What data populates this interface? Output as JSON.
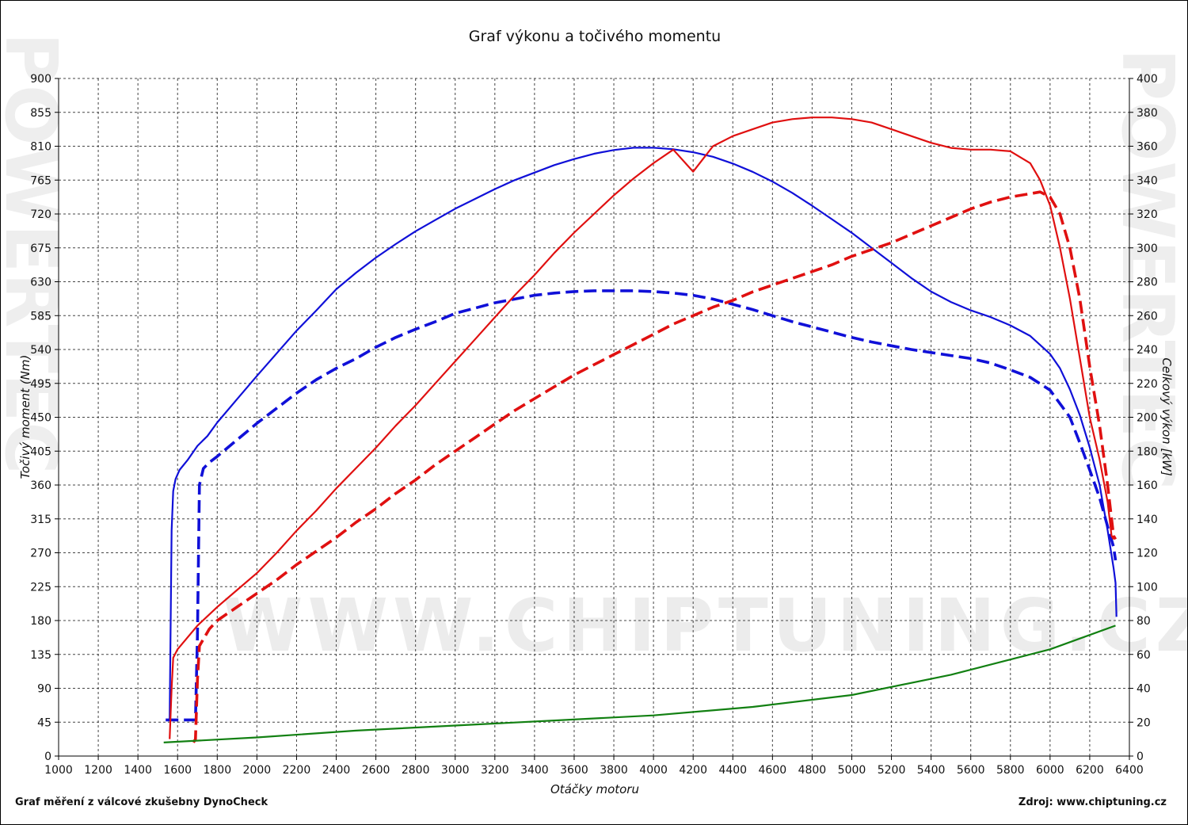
{
  "title": "Graf výkonu a točivého momentu",
  "footer_left": "Graf měření z válcové zkušebny DynoCheck",
  "footer_right": "Zdroj: www.chiptuning.cz",
  "watermark_url": "WWW.CHIPTUNING.CZ",
  "watermark_side": "POWERTEC",
  "chart_data": {
    "type": "line",
    "title": "Graf výkonu a točivého momentu",
    "xlabel": "Otáčky motoru",
    "ylabel_left": "Točivý moment (Nm)",
    "ylabel_right": "Celkový výkon [kW]",
    "xlim": [
      1000,
      6400
    ],
    "ylim_left": [
      0,
      900
    ],
    "ylim_right": [
      0,
      400
    ],
    "x_ticks": [
      1000,
      1200,
      1400,
      1600,
      1800,
      2000,
      2200,
      2400,
      2600,
      2800,
      3000,
      3200,
      3400,
      3600,
      3800,
      4000,
      4200,
      4400,
      4600,
      4800,
      5000,
      5200,
      5400,
      5600,
      5800,
      6000,
      6200,
      6400
    ],
    "y_ticks_left": [
      0,
      45,
      90,
      135,
      180,
      225,
      270,
      315,
      360,
      405,
      450,
      495,
      540,
      585,
      630,
      675,
      720,
      765,
      810,
      855,
      900
    ],
    "y_ticks_right": [
      0,
      20,
      40,
      60,
      80,
      100,
      120,
      140,
      160,
      180,
      200,
      220,
      240,
      260,
      280,
      300,
      320,
      340,
      360,
      380,
      400
    ],
    "grid": true,
    "colors": {
      "torque": "#1010d8",
      "power": "#e01010",
      "loss": "#128012"
    },
    "series": [
      {
        "key": "torque_tuned",
        "axis": "left",
        "color": "#1010d8",
        "dash": false,
        "points": [
          [
            1550,
            47
          ],
          [
            1560,
            48
          ],
          [
            1570,
            300
          ],
          [
            1578,
            352
          ],
          [
            1590,
            368
          ],
          [
            1610,
            380
          ],
          [
            1650,
            393
          ],
          [
            1700,
            412
          ],
          [
            1750,
            425
          ],
          [
            1800,
            443
          ],
          [
            1900,
            474
          ],
          [
            2000,
            505
          ],
          [
            2100,
            535
          ],
          [
            2200,
            565
          ],
          [
            2300,
            592
          ],
          [
            2400,
            620
          ],
          [
            2500,
            642
          ],
          [
            2600,
            662
          ],
          [
            2700,
            680
          ],
          [
            2800,
            697
          ],
          [
            2900,
            712
          ],
          [
            3000,
            727
          ],
          [
            3100,
            740
          ],
          [
            3200,
            753
          ],
          [
            3300,
            765
          ],
          [
            3400,
            775
          ],
          [
            3500,
            785
          ],
          [
            3600,
            793
          ],
          [
            3700,
            800
          ],
          [
            3800,
            805
          ],
          [
            3900,
            808
          ],
          [
            4000,
            808
          ],
          [
            4100,
            806
          ],
          [
            4200,
            802
          ],
          [
            4300,
            796
          ],
          [
            4400,
            787
          ],
          [
            4500,
            776
          ],
          [
            4600,
            763
          ],
          [
            4700,
            748
          ],
          [
            4800,
            731
          ],
          [
            4900,
            713
          ],
          [
            5000,
            695
          ],
          [
            5100,
            675
          ],
          [
            5200,
            655
          ],
          [
            5300,
            635
          ],
          [
            5400,
            617
          ],
          [
            5500,
            603
          ],
          [
            5600,
            592
          ],
          [
            5700,
            583
          ],
          [
            5800,
            572
          ],
          [
            5900,
            558
          ],
          [
            6000,
            534
          ],
          [
            6050,
            515
          ],
          [
            6100,
            487
          ],
          [
            6150,
            453
          ],
          [
            6200,
            410
          ],
          [
            6250,
            360
          ],
          [
            6290,
            300
          ],
          [
            6320,
            250
          ],
          [
            6330,
            230
          ],
          [
            6335,
            185
          ]
        ]
      },
      {
        "key": "torque_stock",
        "axis": "left",
        "color": "#1010d8",
        "dash": true,
        "points": [
          [
            1540,
            48
          ],
          [
            1690,
            48
          ],
          [
            1700,
            160
          ],
          [
            1710,
            360
          ],
          [
            1730,
            382
          ],
          [
            1760,
            390
          ],
          [
            1800,
            398
          ],
          [
            1900,
            420
          ],
          [
            2000,
            442
          ],
          [
            2100,
            462
          ],
          [
            2200,
            482
          ],
          [
            2300,
            500
          ],
          [
            2400,
            515
          ],
          [
            2500,
            528
          ],
          [
            2600,
            543
          ],
          [
            2700,
            556
          ],
          [
            2800,
            567
          ],
          [
            2900,
            577
          ],
          [
            3000,
            588
          ],
          [
            3100,
            595
          ],
          [
            3200,
            602
          ],
          [
            3300,
            607
          ],
          [
            3400,
            612
          ],
          [
            3500,
            615
          ],
          [
            3600,
            617
          ],
          [
            3700,
            618
          ],
          [
            3800,
            618
          ],
          [
            3900,
            618
          ],
          [
            4000,
            617
          ],
          [
            4100,
            615
          ],
          [
            4200,
            612
          ],
          [
            4300,
            607
          ],
          [
            4400,
            600
          ],
          [
            4500,
            593
          ],
          [
            4600,
            585
          ],
          [
            4700,
            577
          ],
          [
            4800,
            570
          ],
          [
            4900,
            563
          ],
          [
            5000,
            556
          ],
          [
            5100,
            550
          ],
          [
            5200,
            545
          ],
          [
            5300,
            540
          ],
          [
            5400,
            536
          ],
          [
            5500,
            532
          ],
          [
            5600,
            528
          ],
          [
            5700,
            522
          ],
          [
            5800,
            513
          ],
          [
            5900,
            503
          ],
          [
            6000,
            486
          ],
          [
            6100,
            450
          ],
          [
            6150,
            416
          ],
          [
            6200,
            380
          ],
          [
            6250,
            343
          ],
          [
            6290,
            305
          ],
          [
            6320,
            278
          ],
          [
            6330,
            260
          ]
        ]
      },
      {
        "key": "power_tuned",
        "axis": "right",
        "color": "#e01010",
        "dash": false,
        "points": [
          [
            1560,
            10
          ],
          [
            1570,
            40
          ],
          [
            1578,
            58
          ],
          [
            1600,
            63
          ],
          [
            1650,
            70
          ],
          [
            1700,
            77
          ],
          [
            1800,
            88
          ],
          [
            1900,
            98
          ],
          [
            2000,
            108
          ],
          [
            2100,
            120
          ],
          [
            2200,
            133
          ],
          [
            2300,
            145
          ],
          [
            2400,
            158
          ],
          [
            2500,
            170
          ],
          [
            2600,
            182
          ],
          [
            2700,
            195
          ],
          [
            2800,
            207
          ],
          [
            2900,
            220
          ],
          [
            3000,
            233
          ],
          [
            3100,
            246
          ],
          [
            3200,
            259
          ],
          [
            3300,
            272
          ],
          [
            3400,
            284
          ],
          [
            3500,
            297
          ],
          [
            3600,
            309
          ],
          [
            3700,
            320
          ],
          [
            3800,
            331
          ],
          [
            3900,
            341
          ],
          [
            4000,
            350
          ],
          [
            4100,
            358
          ],
          [
            4200,
            345
          ],
          [
            4300,
            360
          ],
          [
            4400,
            366
          ],
          [
            4500,
            370
          ],
          [
            4600,
            374
          ],
          [
            4700,
            376
          ],
          [
            4800,
            377
          ],
          [
            4900,
            377
          ],
          [
            5000,
            376
          ],
          [
            5100,
            374
          ],
          [
            5200,
            370
          ],
          [
            5300,
            366
          ],
          [
            5400,
            362
          ],
          [
            5500,
            359
          ],
          [
            5600,
            358
          ],
          [
            5700,
            358
          ],
          [
            5800,
            357
          ],
          [
            5900,
            350
          ],
          [
            5950,
            340
          ],
          [
            6000,
            325
          ],
          [
            6050,
            300
          ],
          [
            6100,
            270
          ],
          [
            6150,
            235
          ],
          [
            6200,
            200
          ],
          [
            6250,
            175
          ],
          [
            6290,
            150
          ],
          [
            6310,
            130
          ],
          [
            6320,
            128
          ]
        ]
      },
      {
        "key": "power_stock",
        "axis": "right",
        "color": "#e01010",
        "dash": true,
        "points": [
          [
            1680,
            8
          ],
          [
            1690,
            10
          ],
          [
            1700,
            45
          ],
          [
            1710,
            65
          ],
          [
            1760,
            75
          ],
          [
            1800,
            80
          ],
          [
            1900,
            88
          ],
          [
            2000,
            96
          ],
          [
            2100,
            104
          ],
          [
            2200,
            113
          ],
          [
            2300,
            121
          ],
          [
            2400,
            129
          ],
          [
            2500,
            138
          ],
          [
            2600,
            146
          ],
          [
            2700,
            155
          ],
          [
            2800,
            163
          ],
          [
            2900,
            172
          ],
          [
            3000,
            180
          ],
          [
            3100,
            188
          ],
          [
            3200,
            196
          ],
          [
            3300,
            204
          ],
          [
            3400,
            211
          ],
          [
            3500,
            218
          ],
          [
            3600,
            225
          ],
          [
            3700,
            231
          ],
          [
            3800,
            237
          ],
          [
            3900,
            243
          ],
          [
            4000,
            249
          ],
          [
            4100,
            255
          ],
          [
            4200,
            260
          ],
          [
            4300,
            265
          ],
          [
            4400,
            269
          ],
          [
            4500,
            274
          ],
          [
            4600,
            278
          ],
          [
            4700,
            282
          ],
          [
            4800,
            286
          ],
          [
            4900,
            290
          ],
          [
            5000,
            295
          ],
          [
            5100,
            299
          ],
          [
            5200,
            303
          ],
          [
            5300,
            308
          ],
          [
            5400,
            313
          ],
          [
            5500,
            318
          ],
          [
            5600,
            323
          ],
          [
            5700,
            327
          ],
          [
            5800,
            330
          ],
          [
            5900,
            332
          ],
          [
            5950,
            333
          ],
          [
            6000,
            330
          ],
          [
            6050,
            320
          ],
          [
            6100,
            300
          ],
          [
            6150,
            270
          ],
          [
            6200,
            230
          ],
          [
            6250,
            195
          ],
          [
            6290,
            160
          ],
          [
            6320,
            130
          ],
          [
            6330,
            128
          ]
        ]
      },
      {
        "key": "power_loss",
        "axis": "right",
        "color": "#128012",
        "dash": false,
        "points": [
          [
            1530,
            8
          ],
          [
            2000,
            11
          ],
          [
            2500,
            15
          ],
          [
            3000,
            18
          ],
          [
            3500,
            21
          ],
          [
            4000,
            24
          ],
          [
            4500,
            29
          ],
          [
            5000,
            36
          ],
          [
            5500,
            48
          ],
          [
            6000,
            63
          ],
          [
            6330,
            77
          ]
        ]
      }
    ]
  }
}
